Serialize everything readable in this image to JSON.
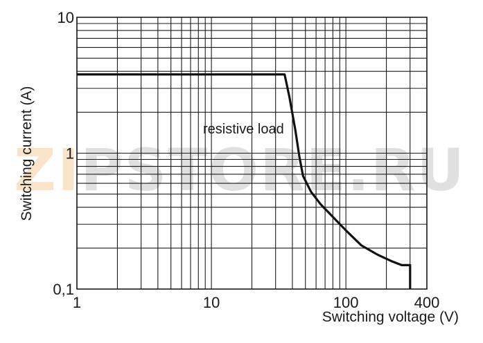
{
  "chart_data": {
    "type": "line",
    "xscale": "log",
    "yscale": "log",
    "xlim": [
      1,
      400
    ],
    "ylim": [
      0.1,
      10
    ],
    "grid": true,
    "xlabel": "Switching voltage (V)",
    "ylabel": "Switching current (A)",
    "xticks": [
      1,
      10,
      100,
      400
    ],
    "xtick_labels": [
      "1",
      "10",
      "100",
      "400"
    ],
    "yticks": [
      0.1,
      1,
      10
    ],
    "ytick_labels": [
      "0,1",
      "1",
      "10"
    ],
    "annotation": "resistive load",
    "series": [
      {
        "x": [
          1,
          35,
          38,
          42,
          45,
          48,
          55,
          65,
          80,
          100,
          130,
          170,
          220,
          260,
          300,
          300
        ],
        "y": [
          3.8,
          3.8,
          2.6,
          1.5,
          0.95,
          0.68,
          0.52,
          0.42,
          0.34,
          0.27,
          0.21,
          0.18,
          0.16,
          0.15,
          0.15,
          0.1
        ]
      }
    ]
  },
  "watermark": "ZIPSTORE.RU",
  "colors": {
    "grid": "#1a1a1a",
    "line": "#111111",
    "watermark_orange": "#f7d3a6",
    "watermark_gray": "#cccccc"
  }
}
